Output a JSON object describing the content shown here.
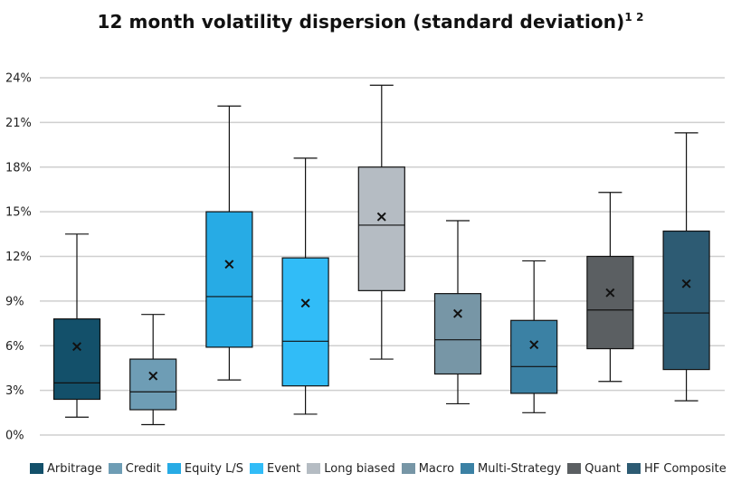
{
  "chart_data": {
    "type": "box",
    "title": "12 month volatility dispersion (standard deviation)",
    "title_superscript": "1 2",
    "ylim": [
      0,
      24
    ],
    "yticks": [
      0,
      3,
      6,
      9,
      12,
      15,
      18,
      21,
      24
    ],
    "ytick_labels": [
      "0%",
      "3%",
      "6%",
      "9%",
      "12%",
      "15%",
      "18%",
      "21%",
      "24%"
    ],
    "grid": true,
    "legend_position": "bottom",
    "mean_marker": "×",
    "series": [
      {
        "name": "Arbitrage",
        "color": "#13506a",
        "min": 1.2,
        "q1": 2.4,
        "median": 3.5,
        "q3": 7.8,
        "max": 13.5,
        "mean": 6.0
      },
      {
        "name": "Credit",
        "color": "#6e9db5",
        "min": 0.7,
        "q1": 1.7,
        "median": 2.9,
        "q3": 5.1,
        "max": 8.1,
        "mean": 4.0
      },
      {
        "name": "Equity L/S",
        "color": "#27abe5",
        "min": 3.7,
        "q1": 5.9,
        "median": 9.3,
        "q3": 15.0,
        "max": 22.1,
        "mean": 11.5
      },
      {
        "name": "Event",
        "color": "#31bcf7",
        "min": 1.4,
        "q1": 3.3,
        "median": 6.3,
        "q3": 11.9,
        "max": 18.6,
        "mean": 8.9
      },
      {
        "name": "Long biased",
        "color": "#b5bcc3",
        "min": 5.1,
        "q1": 9.7,
        "median": 14.1,
        "q3": 18.0,
        "max": 23.5,
        "mean": 14.7
      },
      {
        "name": "Macro",
        "color": "#7796a6",
        "min": 2.1,
        "q1": 4.1,
        "median": 6.4,
        "q3": 9.5,
        "max": 14.4,
        "mean": 8.2
      },
      {
        "name": "Multi-Strategy",
        "color": "#3b81a4",
        "min": 1.5,
        "q1": 2.8,
        "median": 4.6,
        "q3": 7.7,
        "max": 11.7,
        "mean": 6.1
      },
      {
        "name": "Quant",
        "color": "#5b5f62",
        "min": 3.6,
        "q1": 5.8,
        "median": 8.4,
        "q3": 12.0,
        "max": 16.3,
        "mean": 9.6
      },
      {
        "name": "HF Composite",
        "color": "#2d5b73",
        "min": 2.3,
        "q1": 4.4,
        "median": 8.2,
        "q3": 13.7,
        "max": 20.3,
        "mean": 10.2
      }
    ]
  }
}
